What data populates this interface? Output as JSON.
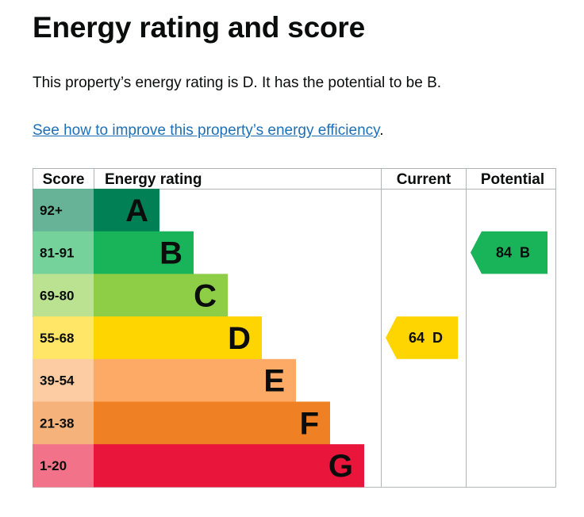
{
  "heading": "Energy rating and score",
  "summary": "This property’s energy rating is D. It has the potential to be B.",
  "improve_link": "See how to improve this property’s energy efficiency",
  "improve_link_suffix": ".",
  "chart_data": {
    "type": "table",
    "columns": [
      "Score",
      "Energy rating",
      "Current",
      "Potential"
    ],
    "bands": [
      {
        "score": "92+",
        "letter": "A",
        "color": "#008054",
        "score_color": "#66b398"
      },
      {
        "score": "81-91",
        "letter": "B",
        "color": "#19b459",
        "score_color": "#75d29b"
      },
      {
        "score": "69-80",
        "letter": "C",
        "color": "#8dce46",
        "score_color": "#bbe290"
      },
      {
        "score": "55-68",
        "letter": "D",
        "color": "#ffd500",
        "score_color": "#ffe666"
      },
      {
        "score": "39-54",
        "letter": "E",
        "color": "#fcaa65",
        "score_color": "#fdcca3"
      },
      {
        "score": "21-38",
        "letter": "F",
        "color": "#ef8023",
        "score_color": "#f5b37b"
      },
      {
        "score": "1-20",
        "letter": "G",
        "color": "#e9153b",
        "score_color": "#f27389"
      }
    ],
    "current": {
      "score": 64,
      "letter": "D",
      "label": "64  D"
    },
    "potential": {
      "score": 84,
      "letter": "B",
      "label": "84  B"
    }
  }
}
